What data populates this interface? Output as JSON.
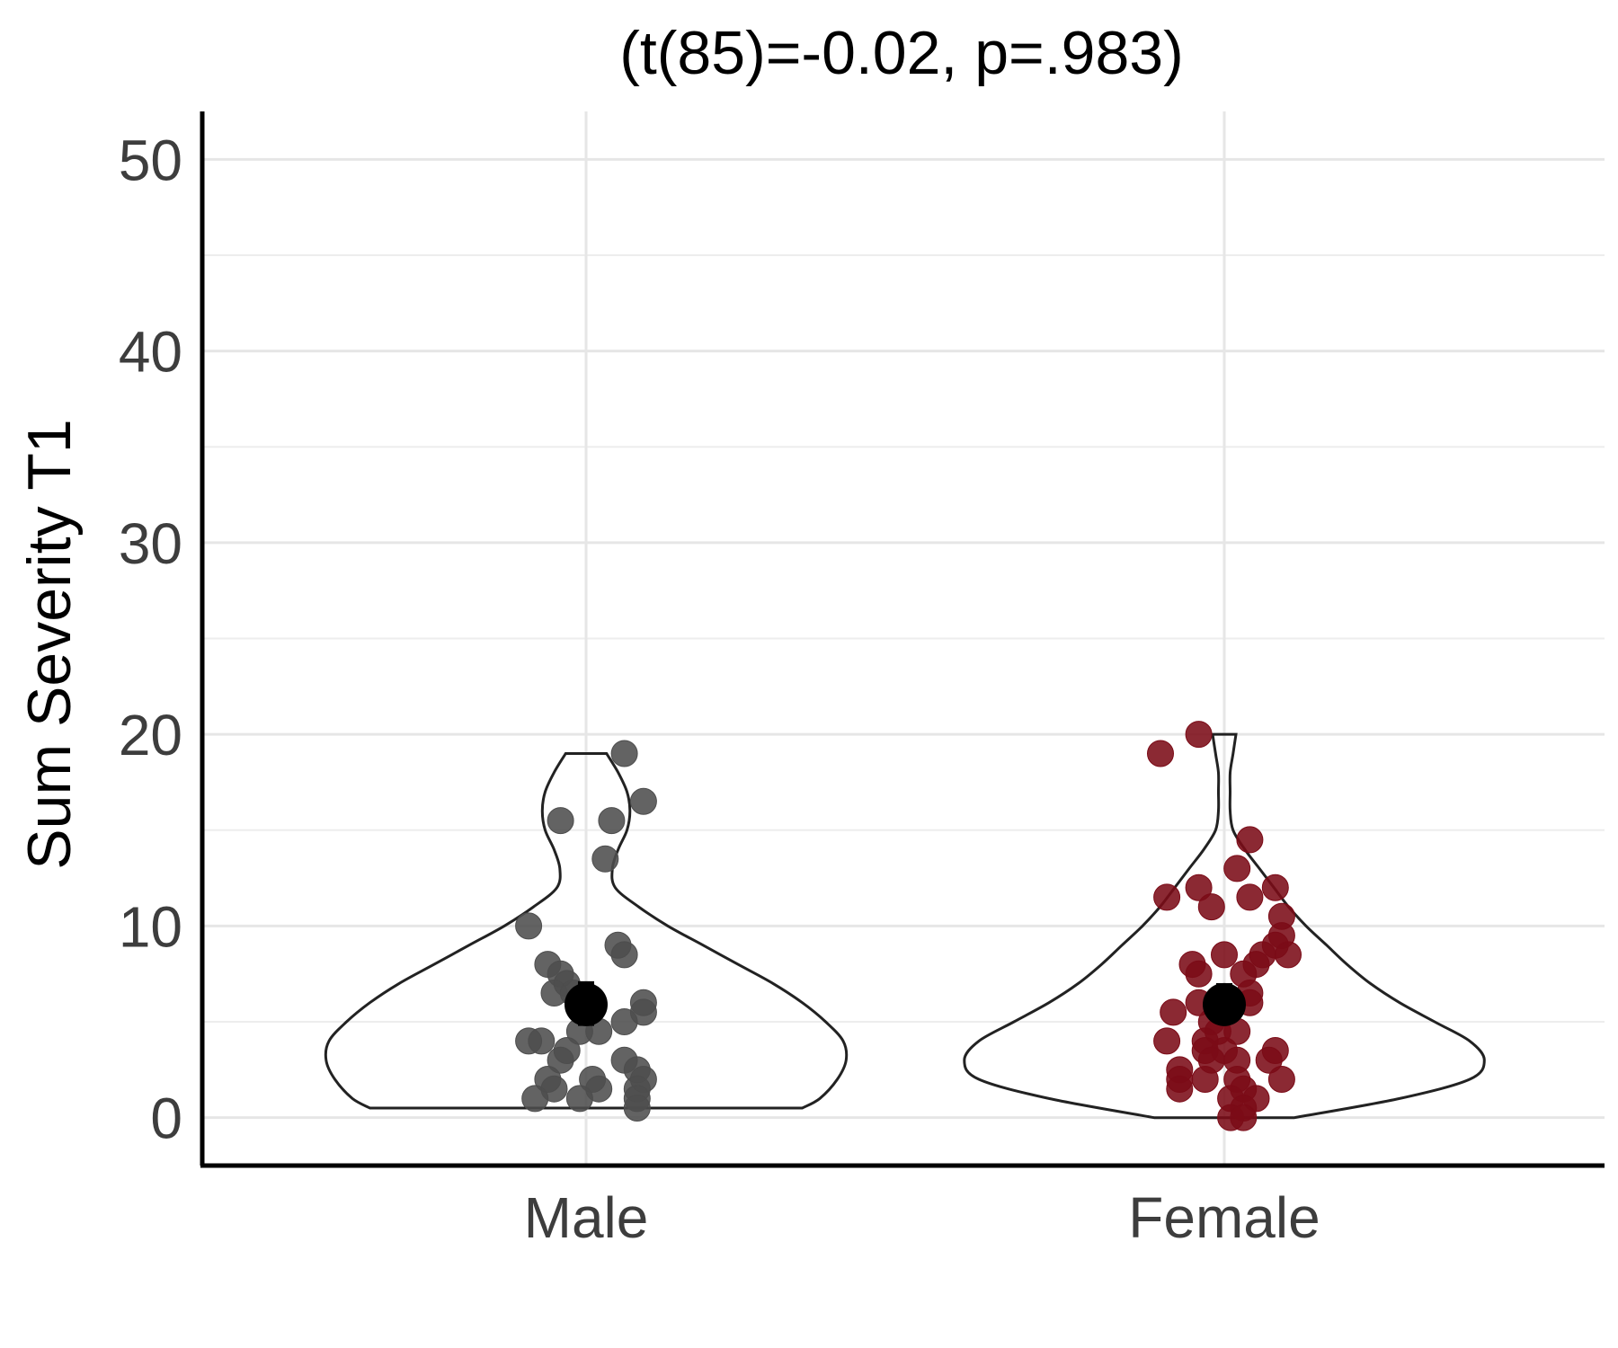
{
  "chart_data": {
    "type": "violin",
    "title": "(t(85)=-0.02, p=.983)",
    "xlabel": "",
    "ylabel": "Sum Severity T1",
    "categories": [
      "Male",
      "Female"
    ],
    "ylim": [
      -2.5,
      52.5
    ],
    "yticks": [
      0,
      10,
      20,
      30,
      40,
      50
    ],
    "grid": true,
    "legend": "none",
    "groups": [
      {
        "name": "Male",
        "color": "#4d4d4d",
        "mean": 5.9,
        "se_low": 4.9,
        "se_high": 7.0,
        "violin_y": [
          0.5,
          1.0,
          2.0,
          3.0,
          4.0,
          5.0,
          6.0,
          7.0,
          8.0,
          9.0,
          10.0,
          11.0,
          12.0,
          13.0,
          14.0,
          15.0,
          16.0,
          17.0,
          18.0,
          19.0
        ],
        "violin_w": [
          0.74,
          0.8,
          0.86,
          0.89,
          0.88,
          0.82,
          0.74,
          0.64,
          0.52,
          0.4,
          0.28,
          0.18,
          0.1,
          0.09,
          0.11,
          0.14,
          0.15,
          0.14,
          0.11,
          0.07
        ],
        "points": [
          {
            "x": 0.06,
            "y": 19
          },
          {
            "x": -0.04,
            "y": 15.5
          },
          {
            "x": 0.04,
            "y": 15.5
          },
          {
            "x": 0.09,
            "y": 16.5
          },
          {
            "x": 0.03,
            "y": 13.5
          },
          {
            "x": -0.09,
            "y": 10
          },
          {
            "x": 0.05,
            "y": 9
          },
          {
            "x": 0.06,
            "y": 8.5
          },
          {
            "x": -0.06,
            "y": 8
          },
          {
            "x": -0.04,
            "y": 7.5
          },
          {
            "x": -0.03,
            "y": 7
          },
          {
            "x": -0.05,
            "y": 6.5
          },
          {
            "x": -0.02,
            "y": 6.5
          },
          {
            "x": 0.09,
            "y": 6
          },
          {
            "x": 0.09,
            "y": 5.5
          },
          {
            "x": 0.06,
            "y": 5
          },
          {
            "x": 0.02,
            "y": 4.5
          },
          {
            "x": -0.01,
            "y": 4.5
          },
          {
            "x": -0.09,
            "y": 4
          },
          {
            "x": -0.07,
            "y": 4
          },
          {
            "x": -0.03,
            "y": 3.5
          },
          {
            "x": -0.04,
            "y": 3
          },
          {
            "x": 0.06,
            "y": 3
          },
          {
            "x": 0.08,
            "y": 2.5
          },
          {
            "x": -0.06,
            "y": 2
          },
          {
            "x": 0.01,
            "y": 2
          },
          {
            "x": 0.09,
            "y": 2
          },
          {
            "x": -0.05,
            "y": 1.5
          },
          {
            "x": 0.02,
            "y": 1.5
          },
          {
            "x": 0.08,
            "y": 1.5
          },
          {
            "x": -0.08,
            "y": 1
          },
          {
            "x": -0.01,
            "y": 1
          },
          {
            "x": 0.08,
            "y": 1
          },
          {
            "x": 0.08,
            "y": 0.5
          }
        ]
      },
      {
        "name": "Female",
        "color": "#7b0b17",
        "mean": 5.9,
        "se_low": 5.0,
        "se_high": 6.9,
        "violin_y": [
          0.0,
          1.0,
          2.0,
          3.0,
          4.0,
          5.0,
          6.0,
          7.0,
          8.0,
          9.0,
          10.0,
          11.0,
          12.0,
          13.0,
          14.0,
          15.0,
          16.0,
          17.0,
          18.0,
          19.0,
          20.0
        ],
        "violin_w": [
          0.24,
          0.6,
          0.84,
          0.89,
          0.84,
          0.72,
          0.6,
          0.5,
          0.42,
          0.35,
          0.28,
          0.22,
          0.17,
          0.12,
          0.07,
          0.03,
          0.02,
          0.02,
          0.02,
          0.03,
          0.04
        ],
        "points": [
          {
            "x": -0.04,
            "y": 20
          },
          {
            "x": -0.1,
            "y": 19
          },
          {
            "x": 0.04,
            "y": 14.5
          },
          {
            "x": 0.02,
            "y": 13
          },
          {
            "x": -0.04,
            "y": 12
          },
          {
            "x": 0.08,
            "y": 12
          },
          {
            "x": -0.09,
            "y": 11.5
          },
          {
            "x": 0.04,
            "y": 11.5
          },
          {
            "x": -0.02,
            "y": 11
          },
          {
            "x": 0.09,
            "y": 10.5
          },
          {
            "x": 0.09,
            "y": 9.5
          },
          {
            "x": 0.08,
            "y": 9
          },
          {
            "x": 0.1,
            "y": 8.5
          },
          {
            "x": 0.06,
            "y": 8.5
          },
          {
            "x": 0.0,
            "y": 8.5
          },
          {
            "x": -0.05,
            "y": 8
          },
          {
            "x": 0.05,
            "y": 8
          },
          {
            "x": -0.04,
            "y": 7.5
          },
          {
            "x": 0.03,
            "y": 7.5
          },
          {
            "x": 0.04,
            "y": 6.5
          },
          {
            "x": -0.04,
            "y": 6
          },
          {
            "x": 0.04,
            "y": 6
          },
          {
            "x": -0.08,
            "y": 5.5
          },
          {
            "x": -0.02,
            "y": 5
          },
          {
            "x": 0.02,
            "y": 4.5
          },
          {
            "x": -0.01,
            "y": 4.5
          },
          {
            "x": -0.09,
            "y": 4
          },
          {
            "x": -0.03,
            "y": 4
          },
          {
            "x": 0.0,
            "y": 3.5
          },
          {
            "x": -0.03,
            "y": 3.5
          },
          {
            "x": 0.08,
            "y": 3.5
          },
          {
            "x": 0.07,
            "y": 3
          },
          {
            "x": 0.02,
            "y": 3
          },
          {
            "x": -0.02,
            "y": 3
          },
          {
            "x": -0.07,
            "y": 2.5
          },
          {
            "x": -0.03,
            "y": 2
          },
          {
            "x": 0.02,
            "y": 2
          },
          {
            "x": 0.09,
            "y": 2
          },
          {
            "x": -0.07,
            "y": 2
          },
          {
            "x": -0.07,
            "y": 1.5
          },
          {
            "x": 0.03,
            "y": 1.5
          },
          {
            "x": 0.01,
            "y": 1
          },
          {
            "x": 0.05,
            "y": 1
          },
          {
            "x": 0.03,
            "y": 0.5
          },
          {
            "x": 0.01,
            "y": 0
          },
          {
            "x": 0.03,
            "y": 0
          }
        ]
      }
    ]
  }
}
